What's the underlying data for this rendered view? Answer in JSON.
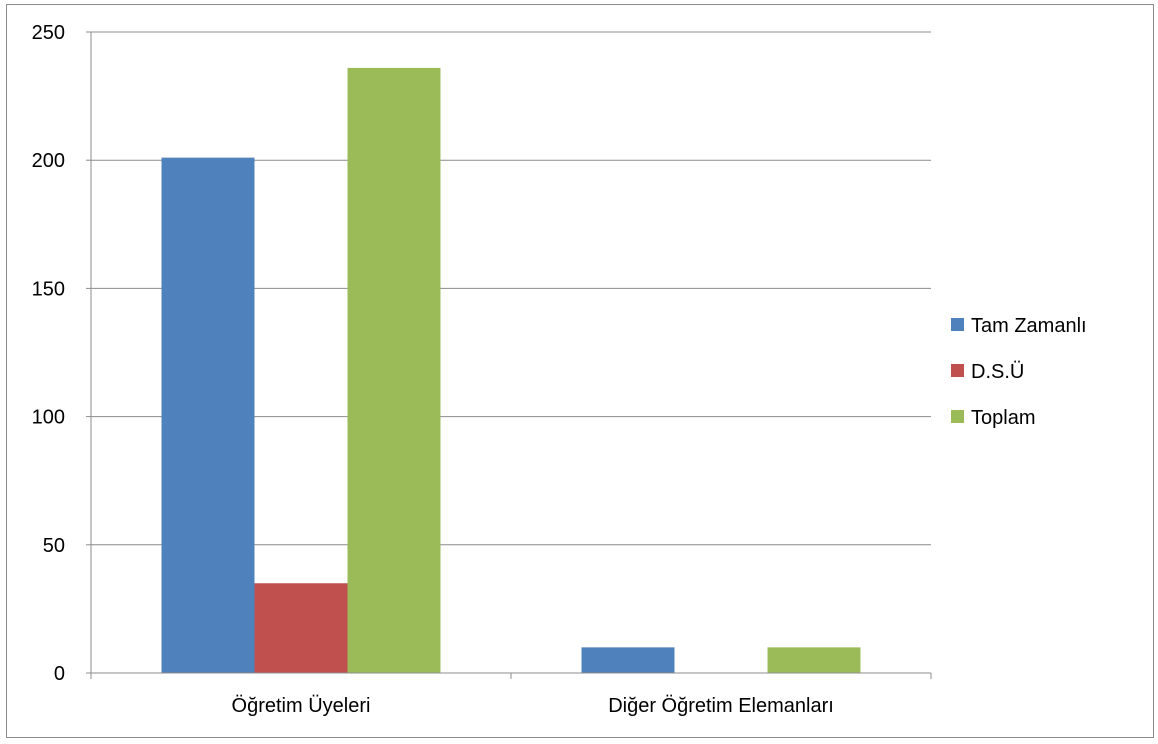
{
  "chart_data": {
    "type": "bar",
    "categories": [
      "Öğretim Üyeleri",
      "Diğer Öğretim Elemanları"
    ],
    "series": [
      {
        "name": "Tam Zamanlı",
        "values": [
          201,
          10
        ],
        "color": "#4f81bd"
      },
      {
        "name": "D.S.Ü",
        "values": [
          35,
          0
        ],
        "color": "#c0504d"
      },
      {
        "name": "Toplam",
        "values": [
          236,
          10
        ],
        "color": "#9bbb59"
      }
    ],
    "title": "",
    "xlabel": "",
    "ylabel": "",
    "ylim": [
      0,
      250
    ],
    "yticks": [
      0,
      50,
      100,
      150,
      200,
      250
    ],
    "grid": true,
    "legend_position": "right"
  }
}
